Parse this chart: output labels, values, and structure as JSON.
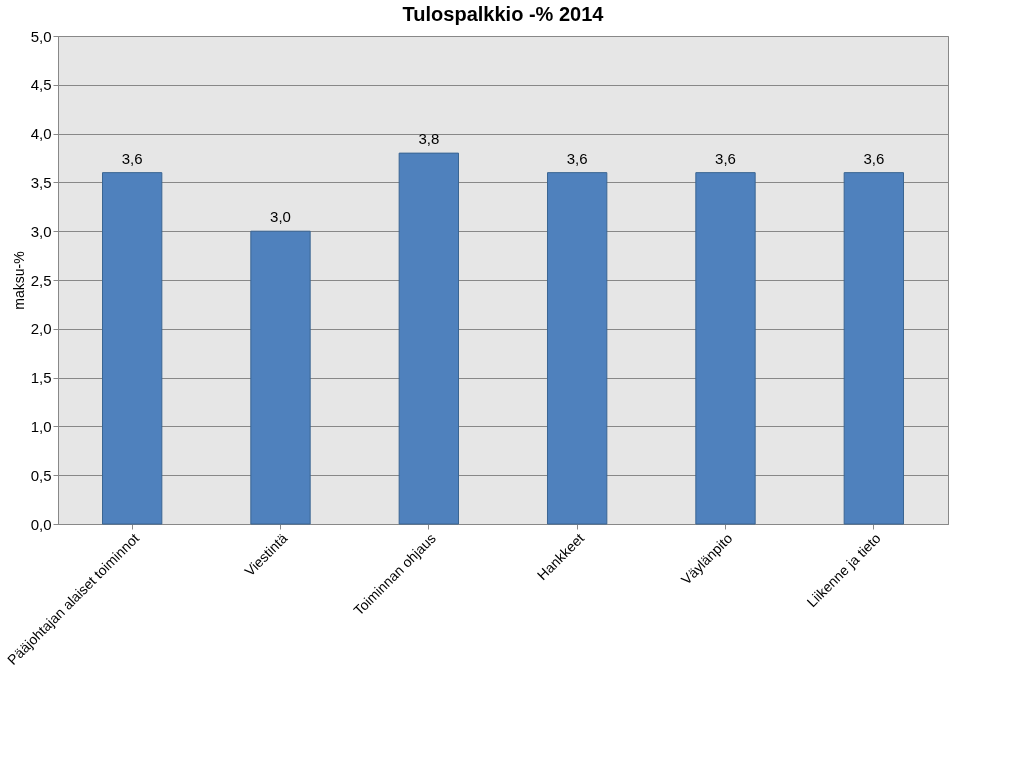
{
  "chart_data": {
    "type": "bar",
    "title": "Tulospalkkio -% 2014",
    "ylabel": "maksu-%",
    "categories": [
      "Pääjohtajan alaiset toiminnot",
      "Viestintä",
      "Toiminnan ohjaus",
      "Hankkeet",
      "Väylänpito",
      "Liikenne ja tieto"
    ],
    "values": [
      3.6,
      3.0,
      3.8,
      3.6,
      3.6,
      3.6
    ],
    "value_labels": [
      "3,6",
      "3,0",
      "3,8",
      "3,6",
      "3,6",
      "3,6"
    ],
    "color": "#4f81bd",
    "ylim": [
      0,
      5
    ],
    "yticks": [
      {
        "value": 0,
        "label": "0,0"
      },
      {
        "value": 0.5,
        "label": "0,5"
      },
      {
        "value": 1,
        "label": "1,0"
      },
      {
        "value": 1.5,
        "label": "1,5"
      },
      {
        "value": 2,
        "label": "2,0"
      },
      {
        "value": 2.5,
        "label": "2,5"
      },
      {
        "value": 3,
        "label": "3,0"
      },
      {
        "value": 3.5,
        "label": "3,5"
      },
      {
        "value": 4,
        "label": "4,0"
      },
      {
        "value": 4.5,
        "label": "4,5"
      },
      {
        "value": 5,
        "label": "5,0"
      }
    ],
    "grid": "y"
  }
}
